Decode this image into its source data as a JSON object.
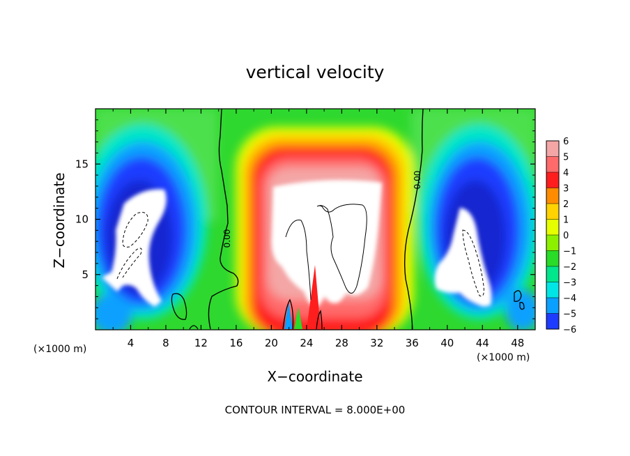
{
  "chart_data": {
    "type": "heatmap",
    "title": "vertical velocity",
    "xlabel": "X−coordinate",
    "ylabel": "Z−coordinate",
    "x_unit_left": "(×1000 m)",
    "x_unit_right": "(×1000 m)",
    "footer": "CONTOUR INTERVAL = 8.000E+00",
    "xlim": [
      0,
      50
    ],
    "ylim": [
      0,
      20
    ],
    "x_ticks": [
      4,
      8,
      12,
      16,
      20,
      24,
      28,
      32,
      36,
      40,
      44,
      48
    ],
    "x_tick_labels": [
      "4",
      "8",
      "12",
      "16",
      "20",
      "24",
      "28",
      "32",
      "36",
      "40",
      "44",
      "48"
    ],
    "y_ticks": [
      5,
      10,
      15
    ],
    "y_tick_labels": [
      "5",
      "10",
      "15"
    ],
    "contour_labels": [
      "0.00",
      "0.00"
    ],
    "colorbar": {
      "levels": [
        6,
        5,
        4,
        3,
        2,
        1,
        0,
        -1,
        -2,
        -3,
        -4,
        -5,
        -6
      ],
      "labels": [
        "6",
        "5",
        "4",
        "3",
        "2",
        "1",
        "0",
        "−1",
        "−2",
        "−3",
        "−4",
        "−5",
        "−6"
      ],
      "colors": [
        "#f4a6a6",
        "#ff6a6a",
        "#ff1e1e",
        "#ff8c00",
        "#ffd200",
        "#e6ff00",
        "#8cf000",
        "#28dc28",
        "#00e68c",
        "#00e6e6",
        "#0aa0ff",
        "#1e3cff",
        "#7800c8"
      ]
    },
    "features": [
      {
        "name": "left-downdraft",
        "x_range": [
          0.5,
          12
        ],
        "z_range": [
          0.5,
          17.5
        ],
        "min_value": -6
      },
      {
        "name": "central-updraft",
        "x_range": [
          16,
          35
        ],
        "z_range": [
          0,
          18
        ],
        "max_value": 6
      },
      {
        "name": "right-downdraft",
        "x_range": [
          37,
          49
        ],
        "z_range": [
          0.5,
          17.5
        ],
        "min_value": -6
      }
    ]
  }
}
